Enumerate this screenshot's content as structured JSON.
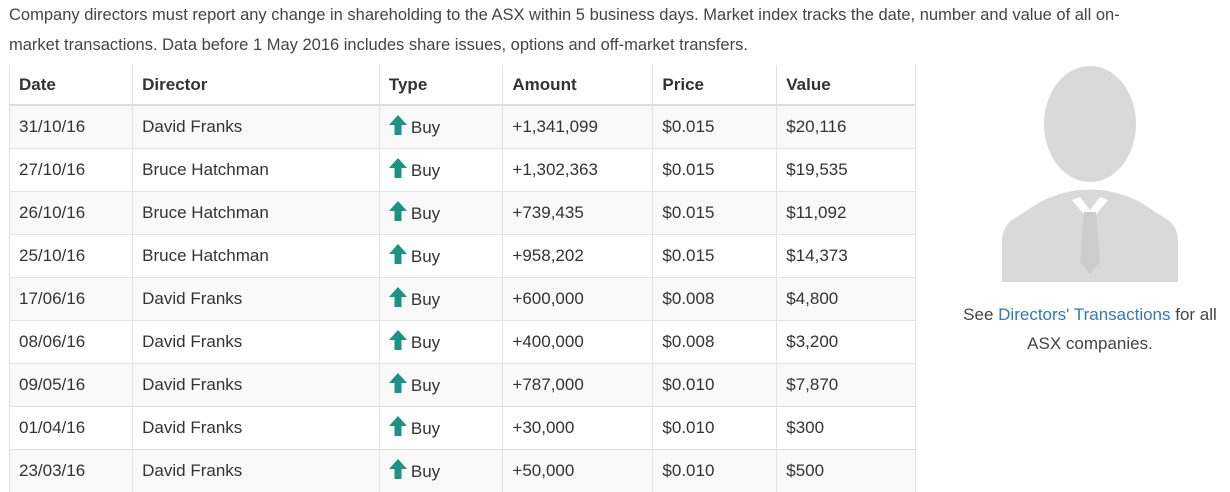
{
  "intro": {
    "line1": "Company directors must report any change in shareholding to the ASX within 5 business days. Market index tracks the date, number and value of all on-",
    "line2": "market transactions. Data before 1 May 2016 includes share issues, options and off-market transfers."
  },
  "table": {
    "headers": {
      "date": "Date",
      "director": "Director",
      "type": "Type",
      "amount": "Amount",
      "price": "Price",
      "value": "Value"
    },
    "rows": [
      {
        "date": "31/10/16",
        "director": "David Franks",
        "type": "Buy",
        "amount": "+1,341,099",
        "price": "$0.015",
        "value": "$20,116"
      },
      {
        "date": "27/10/16",
        "director": "Bruce Hatchman",
        "type": "Buy",
        "amount": "+1,302,363",
        "price": "$0.015",
        "value": "$19,535"
      },
      {
        "date": "26/10/16",
        "director": "Bruce Hatchman",
        "type": "Buy",
        "amount": "+739,435",
        "price": "$0.015",
        "value": "$11,092"
      },
      {
        "date": "25/10/16",
        "director": "Bruce Hatchman",
        "type": "Buy",
        "amount": "+958,202",
        "price": "$0.015",
        "value": "$14,373"
      },
      {
        "date": "17/06/16",
        "director": "David Franks",
        "type": "Buy",
        "amount": "+600,000",
        "price": "$0.008",
        "value": "$4,800"
      },
      {
        "date": "08/06/16",
        "director": "David Franks",
        "type": "Buy",
        "amount": "+400,000",
        "price": "$0.008",
        "value": "$3,200"
      },
      {
        "date": "09/05/16",
        "director": "David Franks",
        "type": "Buy",
        "amount": "+787,000",
        "price": "$0.010",
        "value": "$7,870"
      },
      {
        "date": "01/04/16",
        "director": "David Franks",
        "type": "Buy",
        "amount": "+30,000",
        "price": "$0.010",
        "value": "$300"
      },
      {
        "date": "23/03/16",
        "director": "David Franks",
        "type": "Buy",
        "amount": "+50,000",
        "price": "$0.010",
        "value": "$500"
      }
    ]
  },
  "aside": {
    "avatar_icon": "businessman-silhouette-icon",
    "caption_before": "See ",
    "link_text": "Directors' Transactions",
    "caption_after": " for all ASX companies."
  },
  "colors": {
    "positive": "#1a9383",
    "link": "#337ab7",
    "avatar": "#d9d9d9"
  }
}
